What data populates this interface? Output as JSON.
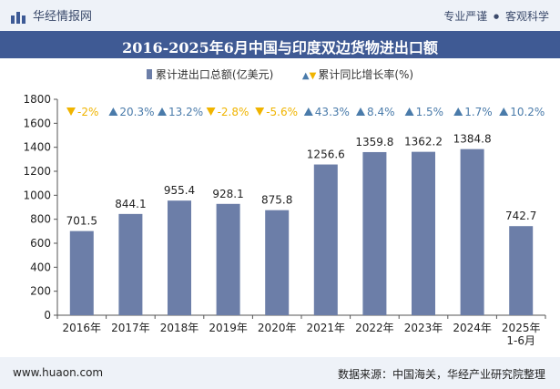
{
  "header": {
    "brand": "华经情报网",
    "tag_left": "专业严谨",
    "tag_sep": "●",
    "tag_right": "客观科学"
  },
  "chart_data": {
    "type": "bar",
    "title": "2016-2025年6月中国与印度双边货物进出口额",
    "categories": [
      "2016年",
      "2017年",
      "2018年",
      "2019年",
      "2020年",
      "2021年",
      "2022年",
      "2023年",
      "2024年",
      "2025年\n1-6月"
    ],
    "series": [
      {
        "name": "累计进出口总额(亿美元)",
        "values": [
          701.5,
          844.1,
          955.4,
          928.1,
          875.8,
          1256.6,
          1359.8,
          1362.2,
          1384.8,
          742.7
        ],
        "labels": [
          "701.5",
          "844.1",
          "955.4",
          "928.1",
          "875.8",
          "1256.6",
          "1359.8",
          "1362.2",
          "1384.8",
          "742.7"
        ],
        "color": "#6c7ea8"
      },
      {
        "name": "累计同比增长率(%)",
        "values": [
          -2,
          20.3,
          13.2,
          -2.8,
          -5.6,
          43.3,
          8.4,
          1.5,
          1.7,
          10.2
        ],
        "labels": [
          "-2%",
          "20.3%",
          "13.2%",
          "-2.8%",
          "-5.6%",
          "43.3%",
          "8.4%",
          "1.5%",
          "1.7%",
          "10.2%"
        ],
        "up_color": "#4a7baa",
        "down_color": "#f0b400"
      }
    ],
    "ylim": [
      0,
      1800
    ],
    "yticks": [
      0,
      200,
      400,
      600,
      800,
      1000,
      1200,
      1400,
      1600,
      1800
    ],
    "legend_position": "top",
    "grid": false
  },
  "footer": {
    "site": "www.huaon.com",
    "source": "数据来源：中国海关，华经产业研究院整理"
  }
}
